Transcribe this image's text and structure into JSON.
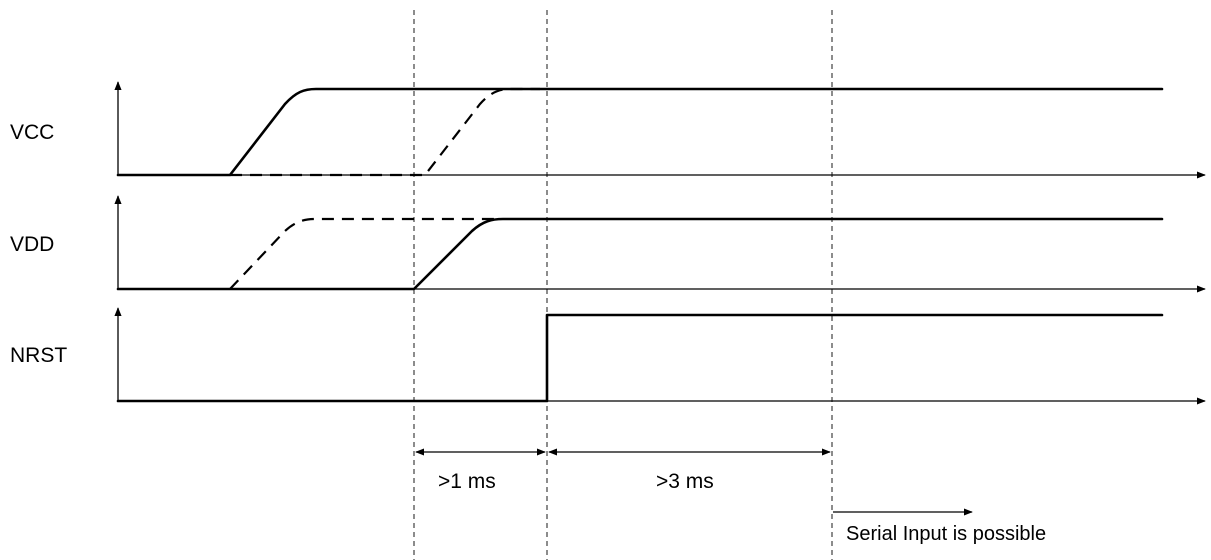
{
  "signals": [
    {
      "id": "vcc",
      "label": "VCC"
    },
    {
      "id": "vdd",
      "label": "VDD"
    },
    {
      "id": "nrst",
      "label": "NRST"
    }
  ],
  "intervals": [
    {
      "id": "t1",
      "label": ">1 ms"
    },
    {
      "id": "t2",
      "label": ">3 ms"
    }
  ],
  "note": "Serial Input is possible"
}
